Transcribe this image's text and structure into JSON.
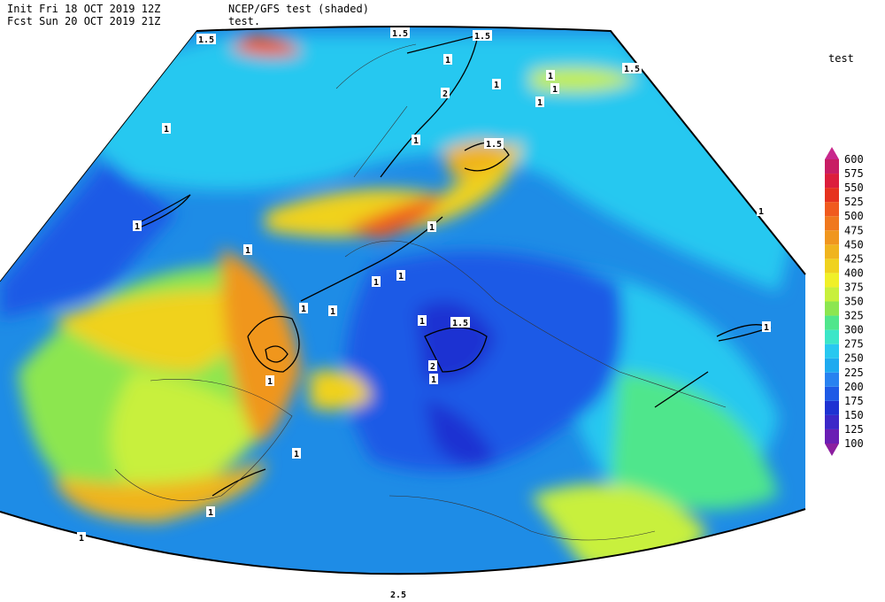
{
  "header": {
    "init": "Init  Fri 18 OCT 2019 12Z",
    "fcst": "Fcst Sun 20 OCT 2019 21Z",
    "model": "NCEP/GFS test (shaded)",
    "contour": "test."
  },
  "legend": {
    "title": "test",
    "levels": [
      100,
      125,
      150,
      175,
      200,
      225,
      250,
      275,
      300,
      325,
      350,
      375,
      400,
      425,
      450,
      475,
      500,
      525,
      550,
      575,
      600
    ],
    "colors": [
      "#8c1ea0",
      "#6a1eb4",
      "#3c28c8",
      "#1e32d2",
      "#1e5ae6",
      "#2882f0",
      "#1eaaf0",
      "#28c8f0",
      "#3ce6c8",
      "#50e68c",
      "#8ce650",
      "#c8f03c",
      "#f0f028",
      "#f0d21e",
      "#f0b41e",
      "#f0961e",
      "#f0781e",
      "#f05a1e",
      "#e6321e",
      "#dc1e3c",
      "#c81e64",
      "#c8288c"
    ]
  },
  "contour_labels": [
    "1.5",
    "1.5",
    "1.5",
    "1.5",
    "1",
    "1",
    "1",
    "1",
    "2",
    "1",
    "1",
    "1.5",
    "1",
    "1",
    "1",
    "1",
    "1",
    "1",
    "1",
    "1",
    "1.5",
    "2",
    "1",
    "1",
    "1",
    "1",
    "1",
    "1",
    "1",
    "1",
    "2.5"
  ]
}
